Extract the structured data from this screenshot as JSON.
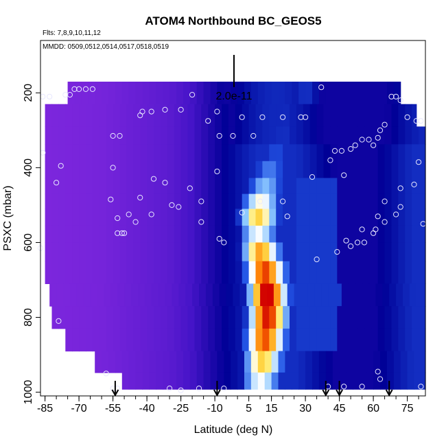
{
  "chart_data": {
    "type": "heatmap",
    "title": "ATOM4 Northbound BC_GEOS5",
    "subtitle_flights": "Flts: 7,8,9,10,11,12",
    "subtitle_dates": "MMDD: 0509,0512,0514,0517,0518,0519",
    "scale_label": "2.0e-11",
    "xlabel": "Latitude (deg N)",
    "ylabel": "PSXC (mbar)",
    "xlim": [
      -87,
      83
    ],
    "ylim": [
      1010,
      60
    ],
    "y_reversed": true,
    "x_ticks": [
      -85,
      -70,
      -55,
      -40,
      -25,
      -10,
      5,
      15,
      30,
      45,
      60,
      75
    ],
    "x_tick_labels": [
      "-85",
      "-70",
      "-55",
      "-40",
      "-25",
      "-10",
      "5",
      "15",
      "30",
      "45",
      "60",
      "75"
    ],
    "x_minor_step": 5,
    "y_ticks": [
      200,
      400,
      600,
      800,
      1000
    ],
    "y_tick_labels": [
      "200",
      "400",
      "600",
      "800",
      "1000"
    ],
    "grid": false,
    "legend": "none",
    "arrows_lat": [
      -54,
      -9,
      39,
      45,
      67
    ],
    "field": {
      "pressure_levels": [
        195,
        265,
        315,
        360,
        405,
        450,
        490,
        530,
        580,
        620,
        680,
        740,
        800,
        860,
        920,
        975
      ],
      "plume_center_lat": [
        30,
        22,
        20,
        17,
        14,
        12,
        10,
        9,
        9,
        10,
        12,
        13,
        13,
        12,
        11,
        10
      ],
      "plume_peak": [
        0.12,
        0.1,
        0.12,
        0.18,
        0.28,
        0.4,
        0.58,
        0.72,
        0.55,
        0.78,
        0.9,
        1.0,
        0.95,
        0.88,
        0.72,
        0.55
      ],
      "row_lat_start": [
        -75,
        -85,
        -85,
        -85,
        -85,
        -85,
        -85,
        -85,
        -85,
        -85,
        -85,
        -83,
        -82,
        -76,
        -63,
        -51
      ],
      "row_lat_end": [
        72,
        79,
        83,
        83,
        83,
        83,
        83,
        83,
        83,
        83,
        83,
        83,
        83,
        83,
        83,
        83
      ]
    },
    "points": [
      {
        "lat": -86,
        "p": 210
      },
      {
        "lat": -83,
        "p": 210
      },
      {
        "lat": -76,
        "p": 205
      },
      {
        "lat": -74,
        "p": 205
      },
      {
        "lat": -72,
        "p": 190
      },
      {
        "lat": -70,
        "p": 190
      },
      {
        "lat": -67,
        "p": 190
      },
      {
        "lat": -64,
        "p": 190
      },
      {
        "lat": -43,
        "p": 260
      },
      {
        "lat": -42,
        "p": 250
      },
      {
        "lat": -38,
        "p": 250
      },
      {
        "lat": -32,
        "p": 245
      },
      {
        "lat": -25,
        "p": 245
      },
      {
        "lat": -20,
        "p": 205
      },
      {
        "lat": -13,
        "p": 275
      },
      {
        "lat": -9,
        "p": 250
      },
      {
        "lat": 2,
        "p": 265
      },
      {
        "lat": 11,
        "p": 265
      },
      {
        "lat": 20,
        "p": 265
      },
      {
        "lat": 28,
        "p": 265
      },
      {
        "lat": 30,
        "p": 265
      },
      {
        "lat": 37,
        "p": 185
      },
      {
        "lat": -55,
        "p": 315
      },
      {
        "lat": -52,
        "p": 315
      },
      {
        "lat": -8,
        "p": 315
      },
      {
        "lat": -2,
        "p": 315
      },
      {
        "lat": 7,
        "p": 315
      },
      {
        "lat": 43,
        "p": 355
      },
      {
        "lat": 46,
        "p": 355
      },
      {
        "lat": -86,
        "p": 360
      },
      {
        "lat": -78,
        "p": 395
      },
      {
        "lat": -55,
        "p": 400
      },
      {
        "lat": -9,
        "p": 410
      },
      {
        "lat": 33,
        "p": 425
      },
      {
        "lat": 41,
        "p": 380
      },
      {
        "lat": 47,
        "p": 420
      },
      {
        "lat": 50,
        "p": 350
      },
      {
        "lat": 52,
        "p": 340
      },
      {
        "lat": 55,
        "p": 325
      },
      {
        "lat": 58,
        "p": 325
      },
      {
        "lat": 60,
        "p": 340
      },
      {
        "lat": 62,
        "p": 320
      },
      {
        "lat": 63,
        "p": 300
      },
      {
        "lat": 65,
        "p": 285
      },
      {
        "lat": 68,
        "p": 210
      },
      {
        "lat": 70,
        "p": 210
      },
      {
        "lat": 72,
        "p": 220
      },
      {
        "lat": 75,
        "p": 265
      },
      {
        "lat": 79,
        "p": 275
      },
      {
        "lat": 81,
        "p": 275
      },
      {
        "lat": 80,
        "p": 385
      },
      {
        "lat": 78,
        "p": 445
      },
      {
        "lat": 72,
        "p": 455
      },
      {
        "lat": 65,
        "p": 490
      },
      {
        "lat": -80,
        "p": 440
      },
      {
        "lat": -56,
        "p": 485
      },
      {
        "lat": -43,
        "p": 480
      },
      {
        "lat": -37,
        "p": 430
      },
      {
        "lat": -32,
        "p": 440
      },
      {
        "lat": -29,
        "p": 500
      },
      {
        "lat": -26,
        "p": 505
      },
      {
        "lat": -21,
        "p": 455
      },
      {
        "lat": -16,
        "p": 490
      },
      {
        "lat": -53,
        "p": 535
      },
      {
        "lat": -51,
        "p": 575
      },
      {
        "lat": -48,
        "p": 525
      },
      {
        "lat": -45,
        "p": 545
      },
      {
        "lat": -38,
        "p": 525
      },
      {
        "lat": -53,
        "p": 575
      },
      {
        "lat": -50,
        "p": 575
      },
      {
        "lat": -16,
        "p": 545
      },
      {
        "lat": -8,
        "p": 590
      },
      {
        "lat": -6,
        "p": 600
      },
      {
        "lat": 2,
        "p": 520
      },
      {
        "lat": 10,
        "p": 490
      },
      {
        "lat": 20,
        "p": 490
      },
      {
        "lat": 22,
        "p": 530
      },
      {
        "lat": 48,
        "p": 595
      },
      {
        "lat": 53,
        "p": 600
      },
      {
        "lat": 55,
        "p": 565
      },
      {
        "lat": 60,
        "p": 575
      },
      {
        "lat": 61,
        "p": 565
      },
      {
        "lat": 62,
        "p": 530
      },
      {
        "lat": 65,
        "p": 545
      },
      {
        "lat": 70,
        "p": 525
      },
      {
        "lat": 72,
        "p": 505
      },
      {
        "lat": 82,
        "p": 550
      },
      {
        "lat": 35,
        "p": 645
      },
      {
        "lat": 44,
        "p": 625
      },
      {
        "lat": 50,
        "p": 610
      },
      {
        "lat": 56,
        "p": 600
      },
      {
        "lat": -87,
        "p": 615
      },
      {
        "lat": -79,
        "p": 810
      },
      {
        "lat": -58,
        "p": 950
      },
      {
        "lat": -55,
        "p": 990
      },
      {
        "lat": -53,
        "p": 990
      },
      {
        "lat": -30,
        "p": 990
      },
      {
        "lat": -25,
        "p": 995
      },
      {
        "lat": -17,
        "p": 990
      },
      {
        "lat": -6,
        "p": 990
      },
      {
        "lat": 40,
        "p": 985
      },
      {
        "lat": 47,
        "p": 985
      },
      {
        "lat": 55,
        "p": 985
      },
      {
        "lat": 62,
        "p": 945
      },
      {
        "lat": 63,
        "p": 965
      },
      {
        "lat": 81,
        "p": 985
      }
    ]
  }
}
